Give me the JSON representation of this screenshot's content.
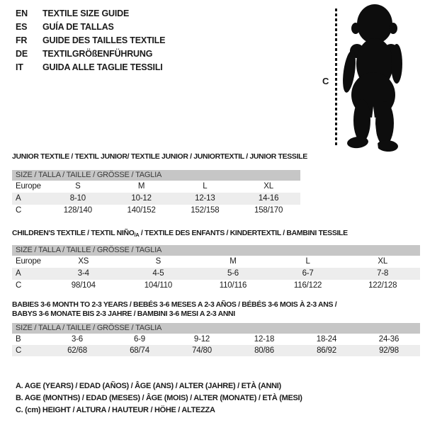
{
  "colors": {
    "band_bg": "#c6c6c6",
    "stripe_bg": "#ededed",
    "text": "#1b1b1b",
    "background": "#ffffff"
  },
  "languages": [
    {
      "code": "EN",
      "title": "TEXTILE SIZE GUIDE"
    },
    {
      "code": "ES",
      "title": "GUÍA DE TALLAS"
    },
    {
      "code": "FR",
      "title": "GUIDE DES TAILLES TEXTILE"
    },
    {
      "code": "DE",
      "title": "TEXTILGRÖßENFÜHRUNG"
    },
    {
      "code": "IT",
      "title": "GUIDA ALLE TAGLIE TESSILI"
    }
  ],
  "figure": {
    "measure_label": "C",
    "icon": "baby-silhouette-icon"
  },
  "tables": [
    {
      "title": "JUNIOR TEXTILE / TEXTIL JUNIOR/ TEXTILE JUNIOR / JUNIORTEXTIL / JUNIOR TESSILE",
      "size_header": "SIZE / TALLA / TAILLE / GRÖSSE / TAGLIA",
      "rows": [
        {
          "label": "Europe",
          "values": [
            "S",
            "M",
            "L",
            "XL"
          ],
          "striped": false
        },
        {
          "label": "A",
          "values": [
            "8-10",
            "10-12",
            "12-13",
            "14-16"
          ],
          "striped": true
        },
        {
          "label": "C",
          "values": [
            "128/140",
            "140/152",
            "152/158",
            "158/170"
          ],
          "striped": false
        }
      ]
    },
    {
      "title_pre": "CHILDREN'S TEXTILE / TEXTIL NIÑO",
      "title_sub": "/A",
      "title_post": " / TEXTILE DES ENFANTS / KINDERTEXTIL / BAMBINI TESSILE",
      "size_header": "SIZE / TALLA / TAILLE / GRÖSSE / TAGLIA",
      "rows": [
        {
          "label": "Europe",
          "values": [
            "XS",
            "S",
            "M",
            "L",
            "XL"
          ],
          "striped": false
        },
        {
          "label": "A",
          "values": [
            "3-4",
            "4-5",
            "5-6",
            "6-7",
            "7-8"
          ],
          "striped": true
        },
        {
          "label": "C",
          "values": [
            "98/104",
            "104/110",
            "110/116",
            "116/122",
            "122/128"
          ],
          "striped": false
        }
      ]
    },
    {
      "title_line1": "BABIES 3-6 MONTH TO 2-3 YEARS / BEBÉS 3-6 MESES A 2-3 AÑOS / BÉBÉS 3-6 MOIS À 2-3 ANS /",
      "title_line2": "BABYS 3-6 MONATE BIS 2-3 JAHRE / BAMBINI 3-6 MESI A 2-3 ANNI",
      "size_header": "SIZE / TALLA / TAILLE / GRÖSSE / TAGLIA",
      "rows": [
        {
          "label": "B",
          "values": [
            "3-6",
            "6-9",
            "9-12",
            "12-18",
            "18-24",
            "24-36"
          ],
          "striped": false
        },
        {
          "label": "C",
          "values": [
            "62/68",
            "68/74",
            "74/80",
            "80/86",
            "86/92",
            "92/98"
          ],
          "striped": true
        }
      ]
    }
  ],
  "legend": [
    "A. AGE (YEARS) / EDAD (AÑOS) / ÂGE (ANS) / ALTER (JAHRE) / ETÀ (ANNI)",
    "B. AGE (MONTHS) / EDAD (MESES) / ÂGE (MOIS) / ALTER (MONATE) / ETÀ (MESI)",
    "C. (cm) HEIGHT / ALTURA / HAUTEUR / HÖHE / ALTEZZA"
  ]
}
